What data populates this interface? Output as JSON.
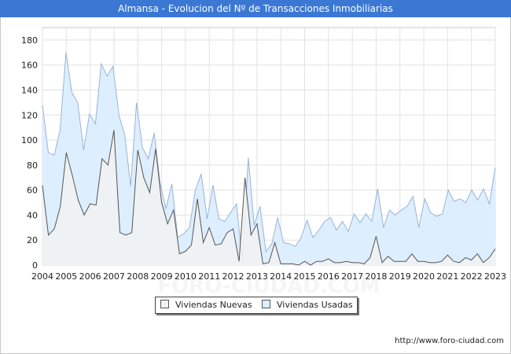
{
  "title": "Almansa - Evolucion del Nº de Transacciones Inmobiliarias",
  "source": "http://www.foro-ciudad.com",
  "watermark": "FORO-CIUDAD.COM",
  "colors": {
    "title_bg": "#3a78d4",
    "nuevas_fill": "#f2f2f2",
    "nuevas_line": "#555555",
    "usadas_fill": "#ddeeff",
    "usadas_line": "#9ab4d4"
  },
  "chart_data": {
    "type": "area",
    "x_tick_labels": [
      "2004",
      "2005",
      "2006",
      "2007",
      "2008",
      "2009",
      "2010",
      "2011",
      "2012",
      "2013",
      "2014",
      "2015",
      "2016",
      "2017",
      "2018",
      "2019",
      "2020",
      "2021",
      "2022",
      "2023"
    ],
    "y_ticks": [
      0,
      20,
      40,
      60,
      80,
      100,
      120,
      140,
      160,
      180
    ],
    "xlim": [
      2004,
      2023
    ],
    "ylim": [
      0,
      190
    ],
    "grid": true,
    "legend_position": "bottom",
    "series": [
      {
        "name": "Viviendas Nuevas",
        "values": [
          64,
          24,
          29,
          47,
          90,
          72,
          52,
          40,
          49,
          48,
          85,
          80,
          108,
          26,
          24,
          26,
          92,
          70,
          58,
          93,
          50,
          33,
          44,
          9,
          11,
          16,
          53,
          18,
          30,
          16,
          17,
          26,
          29,
          3,
          70,
          24,
          33,
          1,
          2,
          18,
          1,
          1,
          1,
          0,
          3,
          0,
          3,
          3,
          5,
          2,
          2,
          3,
          2,
          2,
          1,
          6,
          23,
          2,
          7,
          3,
          3,
          3,
          9,
          3,
          3,
          2,
          2,
          3,
          8,
          3,
          2,
          6,
          4,
          9,
          2,
          6,
          13
        ]
      },
      {
        "name": "Viviendas Usadas",
        "values": [
          128,
          90,
          88,
          108,
          170,
          138,
          130,
          92,
          121,
          113,
          161,
          151,
          159,
          120,
          104,
          63,
          130,
          94,
          85,
          106,
          66,
          45,
          65,
          22,
          25,
          30,
          60,
          73,
          37,
          64,
          37,
          35,
          42,
          49,
          3,
          86,
          32,
          47,
          11,
          17,
          38,
          18,
          17,
          15,
          22,
          36,
          22,
          28,
          35,
          38,
          28,
          35,
          27,
          41,
          34,
          41,
          35,
          61,
          30,
          44,
          40,
          44,
          47,
          55,
          30,
          53,
          42,
          39,
          41,
          60,
          51,
          53,
          50,
          60,
          52,
          61,
          49,
          78
        ]
      }
    ]
  },
  "legend": {
    "items": [
      {
        "label": "Viviendas Nuevas"
      },
      {
        "label": "Viviendas Usadas"
      }
    ]
  }
}
